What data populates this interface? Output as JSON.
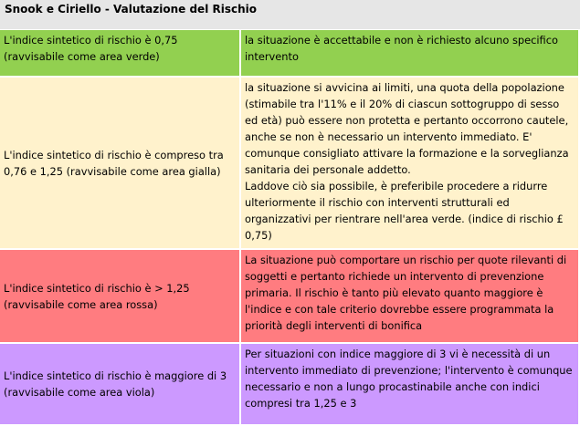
{
  "title": "Snook e Ciriello - Valutazione del Rischio",
  "colors": {
    "header": "#e6e6e6",
    "green": "#92d050",
    "yellow": "#fff2cc",
    "red": "#ff7c80",
    "purple": "#cc99ff"
  },
  "rows": [
    {
      "condition": "L'indice sintetico di rischio è 0,75 (ravvisabile come area verde)",
      "description": "la situazione è accettabile e non è richiesto alcuno specifico intervento"
    },
    {
      "condition": "L'indice sintetico di rischio è compreso tra 0,76 e 1,25 (ravvisabile come area gialla)",
      "description": "la situazione si avvicina ai limiti, una quota della popolazione (stimabile tra l'11% e il 20% di ciascun sottogruppo di sesso ed età) può essere non protetta e pertanto occorrono cautele, anche se non è necessario un intervento immediato. E' comunque consigliato attivare la formazione e la sorveglianza sanitaria dei personale addetto.",
      "description2": "Laddove ciò sia possibile, è preferibile procedere a ridurre ulteriormente il rischio con interventi strutturali ed organizzativi per rientrare nell'area verde. (indice di rischio £ 0,75)"
    },
    {
      "condition": "L'indice sintetico di rischio è > 1,25 (ravvisabile come area rossa)",
      "description": "La situazione può comportare un rischio per quote rilevanti di soggetti e pertanto richiede un intervento di prevenzione primaria. Il rischio è tanto più elevato quanto maggiore è l'indice e con tale criterio dovrebbe essere programmata la priorità degli interventi di bonifica"
    },
    {
      "condition": "L'indice sintetico di rischio è maggiore di 3 (ravvisabile come area viola)",
      "description": "Per situazioni con indice maggiore di 3 vi è necessità di un intervento immediato di prevenzione; l'intervento è comunque necessario e non a lungo procastinabile anche con indici compresi tra 1,25 e 3"
    }
  ]
}
